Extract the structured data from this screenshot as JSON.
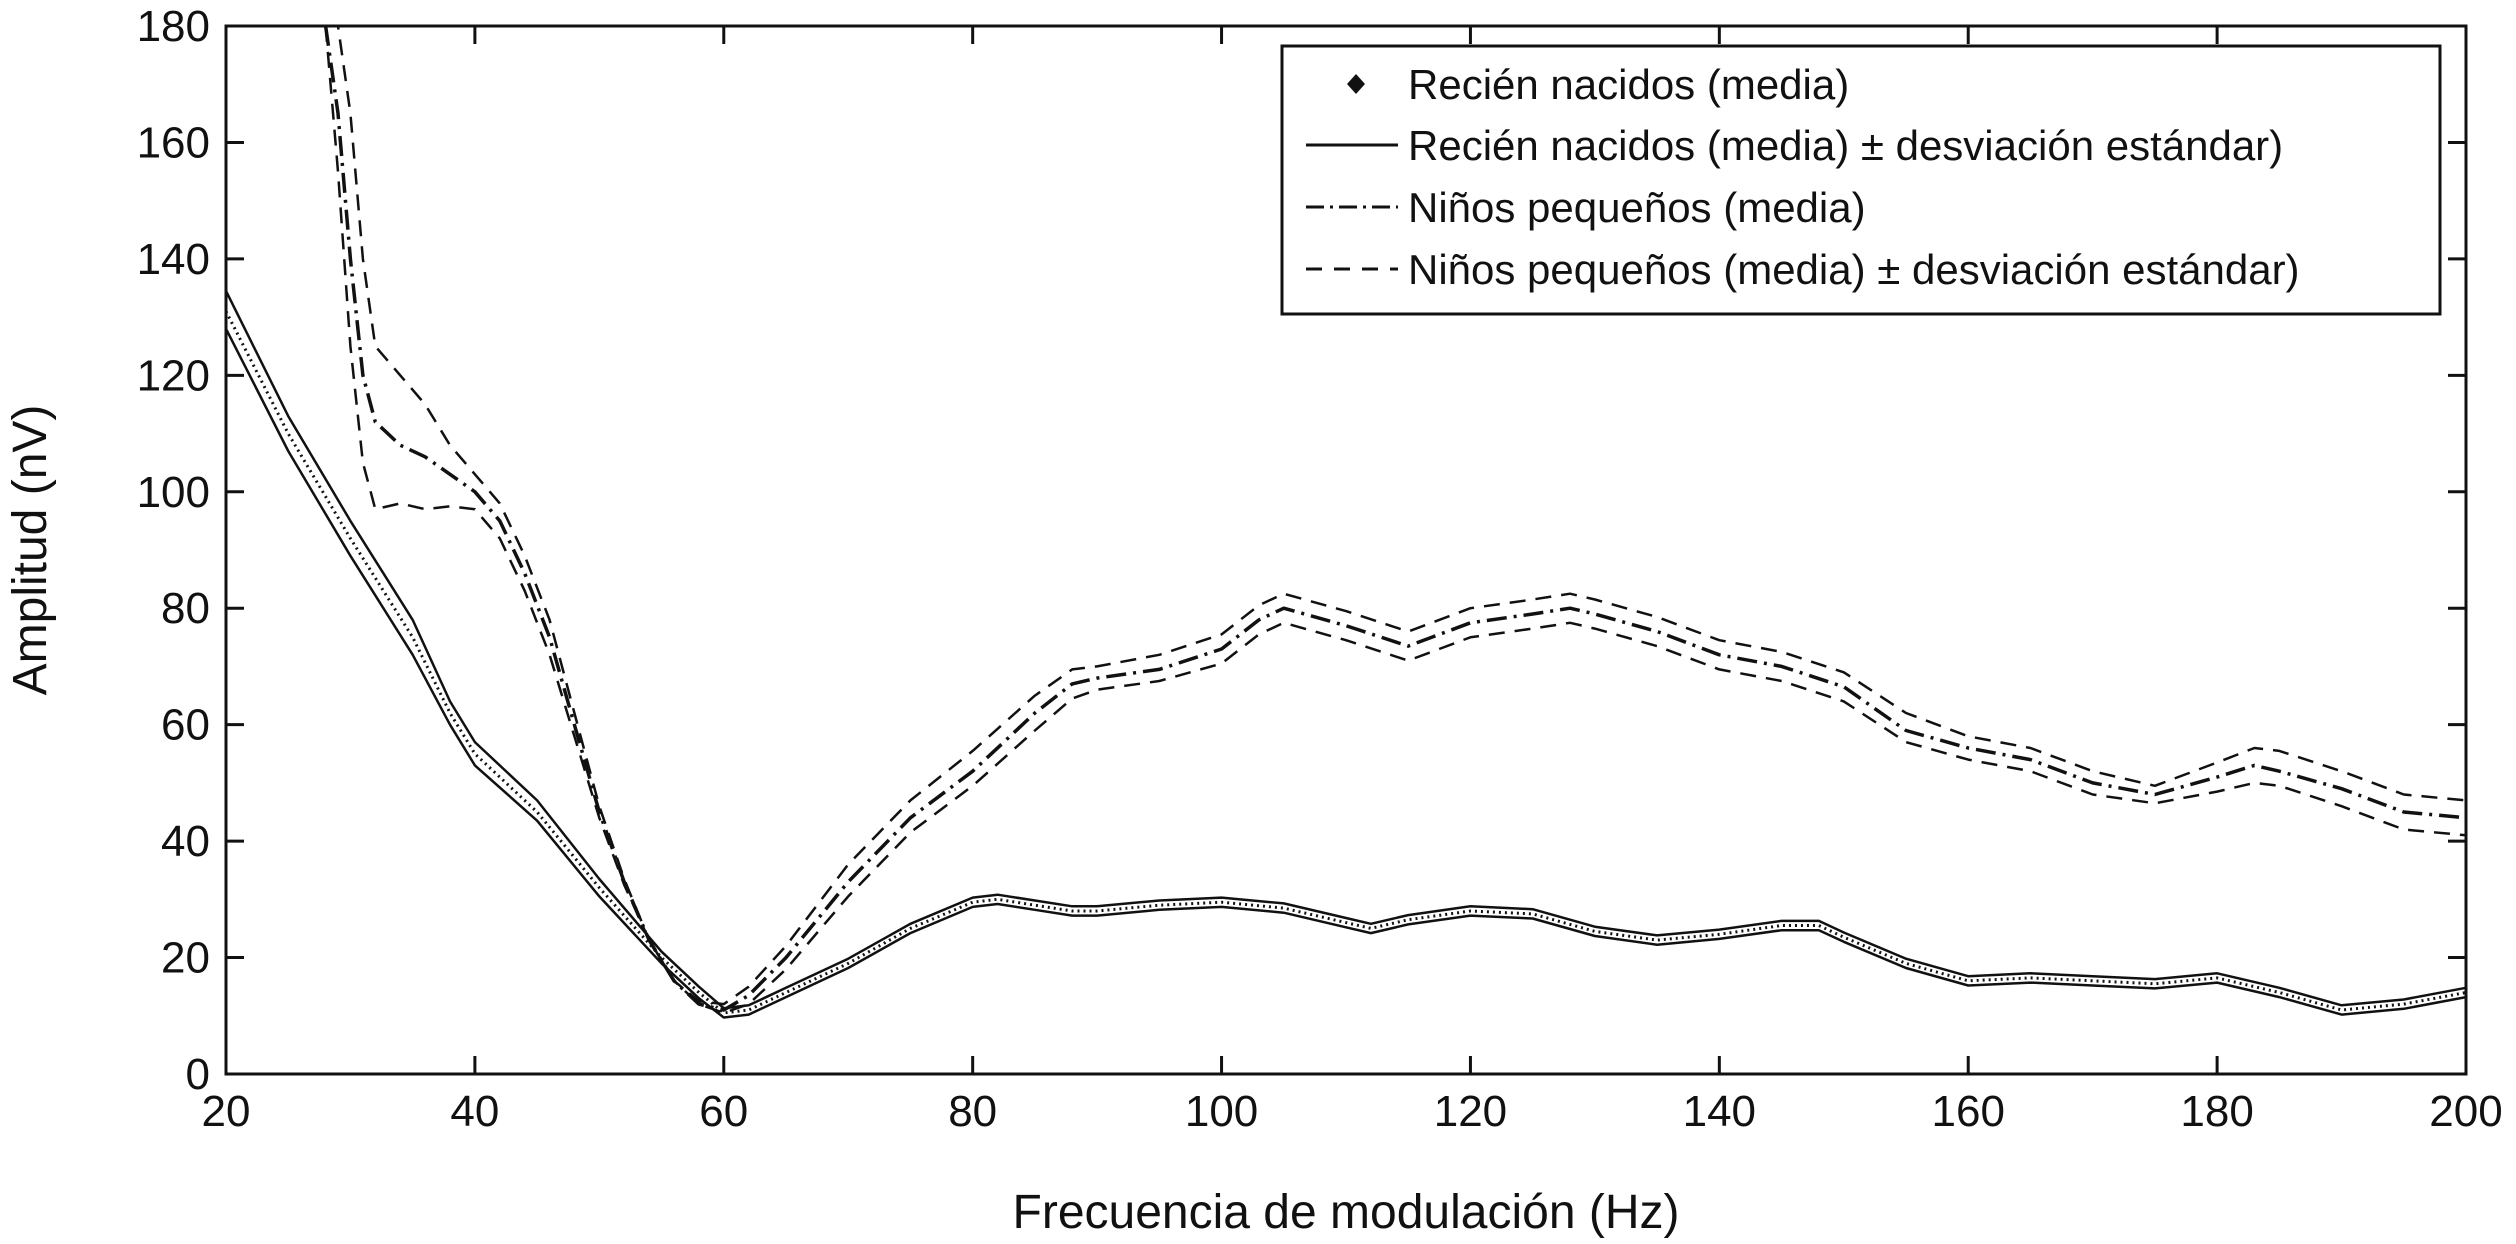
{
  "chart_data": {
    "type": "line",
    "xlabel": "Frecuencia de modulación (Hz)",
    "ylabel": "Amplitud (nV)",
    "xlim": [
      20,
      200
    ],
    "ylim": [
      0,
      180
    ],
    "xticks": [
      20,
      40,
      60,
      80,
      100,
      120,
      140,
      160,
      180,
      200
    ],
    "yticks": [
      0,
      20,
      40,
      60,
      80,
      100,
      120,
      140,
      160,
      180
    ],
    "grid": false,
    "legend_position": "top-right",
    "legend": [
      {
        "label": "Recién nacidos (media)",
        "marker": "diamond"
      },
      {
        "label": "Recién nacidos (media) ± desviación estándar)",
        "style": "solid"
      },
      {
        "label": "Niños pequeños (media)",
        "style": "dashdot"
      },
      {
        "label": "Niños pequeños (media) ± desviación estándar)",
        "style": "dashed"
      }
    ],
    "series": [
      {
        "role": "newborn-mean",
        "style": "dotted",
        "color": "#111111",
        "x": [
          20,
          25,
          30,
          35,
          38,
          40,
          45,
          50,
          55,
          58,
          60,
          62,
          65,
          70,
          75,
          80,
          82,
          85,
          88,
          90,
          95,
          100,
          105,
          110,
          112,
          115,
          120,
          125,
          130,
          135,
          140,
          145,
          148,
          150,
          155,
          160,
          165,
          170,
          175,
          180,
          185,
          190,
          195,
          200
        ],
        "y": [
          131,
          110,
          92,
          75,
          62,
          55,
          45,
          32,
          20,
          14,
          10.5,
          11,
          14,
          19,
          25,
          29.5,
          30,
          29,
          28,
          28,
          29,
          29.5,
          28.5,
          26,
          25,
          26.5,
          28,
          27.5,
          24.5,
          23,
          24,
          25.5,
          25.5,
          23.5,
          19,
          16,
          16.5,
          16,
          15.5,
          16.5,
          14,
          11,
          12,
          14
        ]
      },
      {
        "role": "newborn-upper-sd",
        "style": "solid",
        "color": "#111111",
        "x": [
          20,
          25,
          30,
          35,
          38,
          40,
          45,
          50,
          55,
          58,
          60,
          62,
          65,
          70,
          75,
          80,
          82,
          85,
          88,
          90,
          95,
          100,
          105,
          110,
          112,
          115,
          120,
          125,
          130,
          135,
          140,
          145,
          148,
          150,
          155,
          160,
          165,
          170,
          175,
          180,
          185,
          190,
          195,
          200
        ],
        "y": [
          134.5,
          113,
          95,
          78,
          64,
          57,
          47,
          33.5,
          21,
          15,
          11.3,
          11.8,
          14.8,
          19.8,
          25.8,
          30.3,
          30.8,
          29.8,
          28.8,
          28.8,
          29.8,
          30.3,
          29.3,
          26.8,
          25.8,
          27.3,
          28.8,
          28.3,
          25.3,
          23.8,
          24.8,
          26.3,
          26.3,
          24.3,
          19.8,
          16.8,
          17.3,
          16.8,
          16.3,
          17.3,
          14.8,
          11.8,
          12.8,
          14.8
        ]
      },
      {
        "role": "newborn-lower-sd",
        "style": "solid",
        "color": "#111111",
        "x": [
          20,
          25,
          30,
          35,
          38,
          40,
          45,
          50,
          55,
          58,
          60,
          62,
          65,
          70,
          75,
          80,
          82,
          85,
          88,
          90,
          95,
          100,
          105,
          110,
          112,
          115,
          120,
          125,
          130,
          135,
          140,
          145,
          148,
          150,
          155,
          160,
          165,
          170,
          175,
          180,
          185,
          190,
          195,
          200
        ],
        "y": [
          128,
          107,
          89,
          72,
          60,
          53,
          43.5,
          30.5,
          19,
          13,
          9.7,
          10.2,
          13.2,
          18.2,
          24.2,
          28.7,
          29.2,
          28.2,
          27.2,
          27.2,
          28.2,
          28.7,
          27.7,
          25.2,
          24.2,
          25.7,
          27.2,
          26.7,
          23.7,
          22.2,
          23.2,
          24.7,
          24.7,
          22.7,
          18.2,
          15.2,
          15.7,
          15.2,
          14.7,
          15.7,
          13.2,
          10.2,
          11.2,
          13.2
        ]
      },
      {
        "role": "child-mean",
        "style": "dashdot",
        "color": "#111111",
        "x": [
          28,
          29,
          30,
          31,
          32,
          34,
          36,
          38,
          40,
          42,
          44,
          46,
          48,
          50,
          52,
          54,
          56,
          58,
          60,
          62,
          65,
          70,
          75,
          80,
          85,
          88,
          90,
          95,
          100,
          103,
          105,
          110,
          115,
          120,
          125,
          128,
          130,
          135,
          140,
          145,
          150,
          155,
          160,
          165,
          170,
          175,
          180,
          183,
          185,
          190,
          195,
          200
        ],
        "y": [
          180,
          165,
          140,
          120,
          112,
          108,
          106,
          103,
          100,
          95,
          86,
          75,
          60,
          45,
          33,
          23,
          16,
          12,
          11,
          13.5,
          20,
          33,
          44,
          52,
          62,
          67,
          68,
          69.5,
          73,
          78,
          80,
          77,
          73.5,
          77.5,
          79,
          80,
          79,
          76,
          72,
          70,
          66.5,
          59,
          56,
          54,
          50,
          48,
          51,
          53,
          52,
          49,
          45,
          44
        ]
      },
      {
        "role": "child-upper-sd",
        "style": "dashed",
        "color": "#111111",
        "x": [
          28,
          29,
          30,
          31,
          32,
          34,
          36,
          38,
          40,
          42,
          44,
          46,
          48,
          50,
          52,
          54,
          56,
          58,
          60,
          62,
          65,
          70,
          75,
          80,
          85,
          88,
          90,
          95,
          100,
          103,
          105,
          110,
          115,
          120,
          125,
          128,
          130,
          135,
          140,
          145,
          150,
          155,
          160,
          165,
          170,
          175,
          180,
          183,
          185,
          190,
          195,
          200
        ],
        "y": [
          180,
          180,
          165,
          140,
          125,
          120,
          115,
          108,
          103,
          98,
          89,
          78,
          62,
          46,
          33.5,
          23,
          16,
          12.5,
          12,
          15,
          22,
          36,
          47,
          55.5,
          65,
          69.5,
          70,
          72,
          75.5,
          80.5,
          82.5,
          79.5,
          76,
          80,
          81.5,
          82.5,
          81.5,
          78.5,
          74.5,
          72.5,
          69,
          62,
          58,
          56,
          52,
          49.5,
          53.5,
          56,
          55.5,
          52,
          48,
          47
        ]
      },
      {
        "role": "child-lower-sd",
        "style": "dashed",
        "color": "#111111",
        "x": [
          28,
          29,
          30,
          31,
          32,
          34,
          36,
          38,
          40,
          42,
          44,
          46,
          48,
          50,
          52,
          54,
          56,
          58,
          60,
          62,
          65,
          70,
          75,
          80,
          85,
          88,
          90,
          95,
          100,
          103,
          105,
          110,
          115,
          120,
          125,
          128,
          130,
          135,
          140,
          145,
          150,
          155,
          160,
          165,
          170,
          175,
          180,
          183,
          185,
          190,
          195,
          200
        ],
        "y": [
          180,
          155,
          125,
          105,
          97,
          98,
          97,
          97.5,
          97,
          92,
          83,
          72,
          58,
          44,
          32.5,
          23,
          16,
          12,
          10.5,
          12,
          18,
          30.5,
          41.5,
          49.5,
          59,
          64.5,
          66,
          67.5,
          70.5,
          75.5,
          77.5,
          74.5,
          71,
          75,
          76.5,
          77.5,
          76.5,
          73.5,
          69.5,
          67.5,
          64,
          57,
          54,
          52,
          48,
          46.5,
          48.5,
          50,
          49.5,
          46,
          42,
          41
        ]
      }
    ]
  }
}
